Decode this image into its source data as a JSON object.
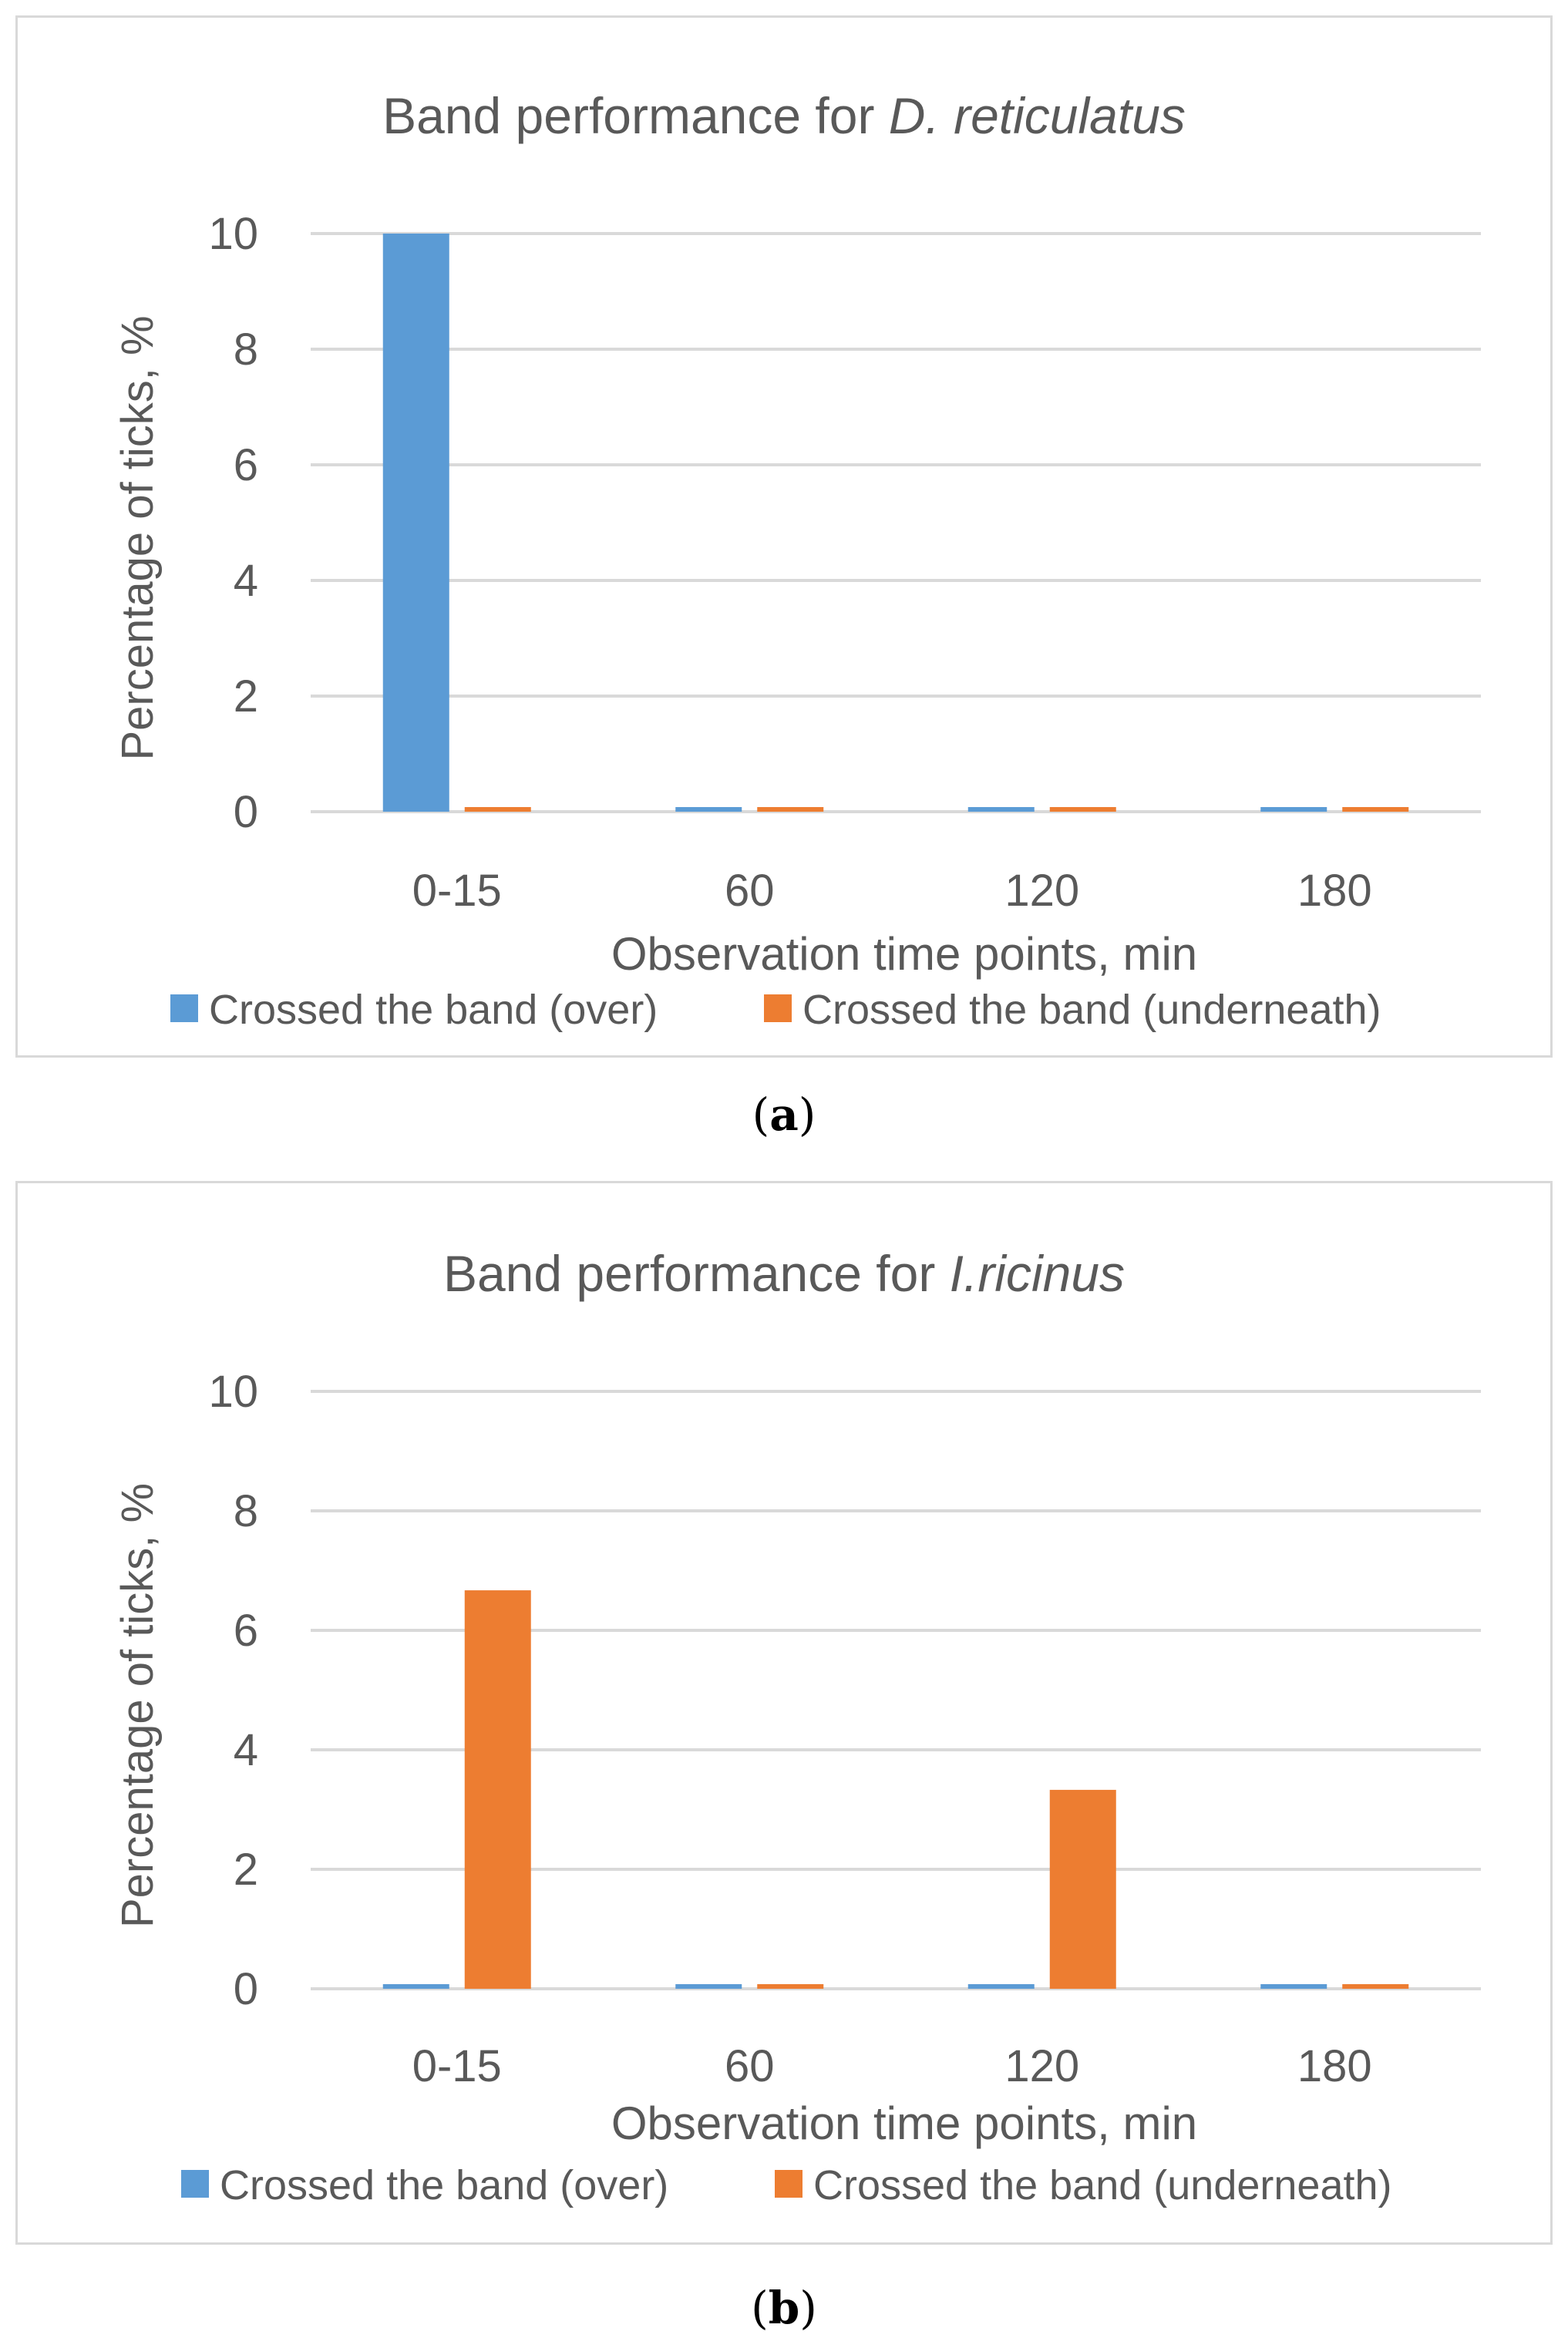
{
  "colors": {
    "over": "#5b9bd5",
    "under": "#ed7d31",
    "grid": "#d9d9d9",
    "text": "#595959"
  },
  "chart_data": [
    {
      "type": "bar",
      "title": "Band performance for ",
      "title_species": "D. reticulatus",
      "xlabel": "Observation time points, min",
      "ylabel": "Percentage of ticks, %",
      "ylim": [
        0,
        10
      ],
      "yticks": [
        "0",
        "2",
        "4",
        "6",
        "8",
        "10"
      ],
      "categories": [
        "0-15",
        "60",
        "120",
        "180"
      ],
      "series": [
        {
          "name": "Crossed the band (over)",
          "values": [
            10,
            0,
            0,
            0
          ]
        },
        {
          "name": "Crossed the band (underneath)",
          "values": [
            0,
            0,
            0,
            0
          ]
        }
      ],
      "caption_letter": "a"
    },
    {
      "type": "bar",
      "title": "Band performance for ",
      "title_species": "I.ricinus",
      "xlabel": "Observation time points, min",
      "ylabel": "Percentage of ticks, %",
      "ylim": [
        0,
        10
      ],
      "yticks": [
        "0",
        "2",
        "4",
        "6",
        "8",
        "10"
      ],
      "categories": [
        "0-15",
        "60",
        "120",
        "180"
      ],
      "series": [
        {
          "name": "Crossed the band (over)",
          "values": [
            0,
            0,
            0,
            0
          ]
        },
        {
          "name": "Crossed the band (underneath)",
          "values": [
            6.67,
            0,
            3.33,
            0
          ]
        }
      ],
      "caption_letter": "b"
    }
  ]
}
